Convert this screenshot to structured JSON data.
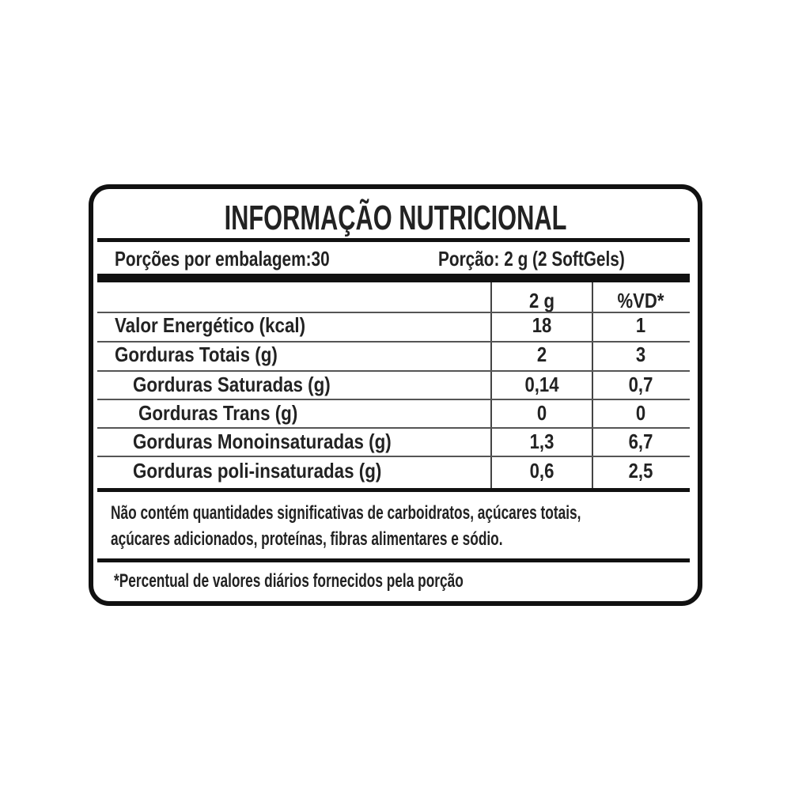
{
  "title": "INFORMAÇÃO NUTRICIONAL",
  "servings_per_package": "Porções por embalagem:30",
  "serving_size": "Porção: 2 g (2 SoftGels)",
  "columns": [
    "2 g",
    "%VD*"
  ],
  "rows": [
    {
      "label": "Valor Energético (kcal)",
      "amount": "18",
      "dv": "1"
    },
    {
      "label": "Gorduras Totais (g)",
      "amount": "2",
      "dv": "3"
    },
    {
      "label": "Gorduras Saturadas (g)",
      "amount": "0,14",
      "dv": "0,7"
    },
    {
      "label": "Gorduras Trans (g)",
      "amount": "0",
      "dv": "0"
    },
    {
      "label": "Gorduras Monoinsaturadas (g)",
      "amount": "1,3",
      "dv": "6,7"
    },
    {
      "label": "Gorduras poli-insaturadas (g)",
      "amount": "0,6",
      "dv": "2,5"
    }
  ],
  "notice": [
    "Não contém quantidades significativas de carboidratos, açúcares totais,",
    "açúcares adicionados, proteínas, fibras alimentares e sódio."
  ],
  "footnote": "*Percentual de valores diários fornecidos pela porção"
}
